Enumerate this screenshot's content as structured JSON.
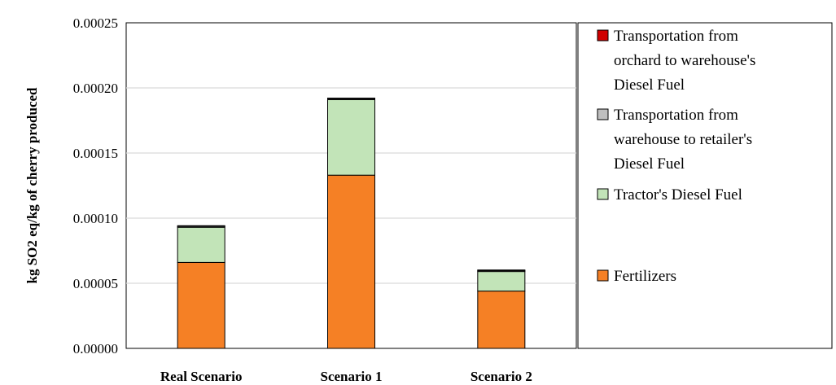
{
  "chart_data": {
    "type": "bar",
    "stacked": true,
    "categories": [
      "Real Scenario",
      "Scenario 1",
      "Scenario 2"
    ],
    "series": [
      {
        "name": "Fertilizers",
        "color": "#F58025",
        "values": [
          6.6e-05,
          0.000133,
          4.4e-05
        ]
      },
      {
        "name": "Tractor's Diesel Fuel",
        "color": "#C2E4B8",
        "values": [
          2.7e-05,
          5.8e-05,
          1.5e-05
        ]
      },
      {
        "name": "Transportation from warehouse to retailer's Diesel Fuel",
        "color": "#BFBFBF",
        "values": [
          8e-07,
          8e-07,
          8e-07
        ]
      },
      {
        "name": "Transportation from orchard to warehouse's Diesel Fuel",
        "color": "#D00000",
        "values": [
          4e-07,
          4e-07,
          4e-07
        ]
      }
    ],
    "ylabel": "kg SO2 eq/kg of cherry produced",
    "ylim": [
      0,
      0.00025
    ],
    "yticks": [
      "0.00000",
      "0.00005",
      "0.00010",
      "0.00015",
      "0.00020",
      "0.00025"
    ],
    "grid": true,
    "legend_position": "right",
    "legend": [
      {
        "lines": [
          "Transportation from",
          "orchard to warehouse's",
          "Diesel Fuel"
        ],
        "color": "#D00000"
      },
      {
        "lines": [
          "Transportation from",
          "warehouse to retailer's",
          "Diesel Fuel"
        ],
        "color": "#BFBFBF"
      },
      {
        "lines": [
          "Tractor's Diesel Fuel"
        ],
        "color": "#C2E4B8"
      },
      {
        "lines": [
          "Fertilizers"
        ],
        "color": "#F58025"
      }
    ]
  }
}
